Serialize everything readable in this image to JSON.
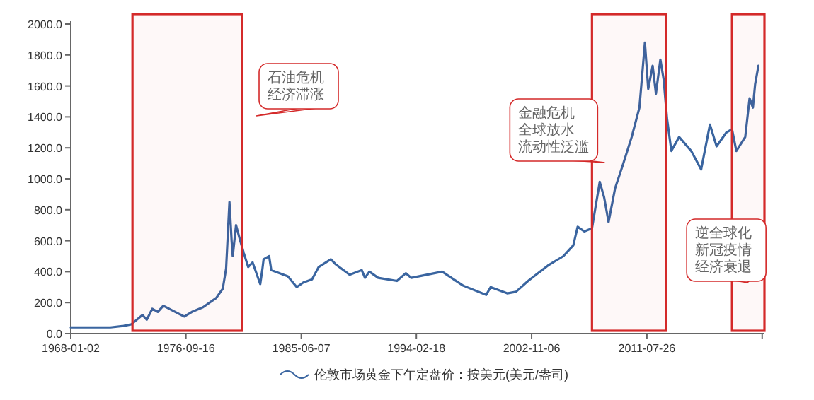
{
  "chart_data": {
    "type": "line",
    "xlim": [
      "1968-01-02",
      "2020-06-15"
    ],
    "xticks": [
      {
        "value": "1968-01-02",
        "label": "1968-01-02"
      },
      {
        "value": "1976-09-16",
        "label": "1976-09-16"
      },
      {
        "value": "1985-06-07",
        "label": "1985-06-07"
      },
      {
        "value": "1994-02-18",
        "label": "1994-02-18"
      },
      {
        "value": "2002-11-06",
        "label": "2002-11-06"
      },
      {
        "value": "2011-07-26",
        "label": "2011-07-26"
      },
      {
        "value": "2020-04-13",
        "label": null
      }
    ],
    "ylim": [
      0,
      2000
    ],
    "yticks": [
      {
        "value": 0,
        "label": "0.0"
      },
      {
        "value": 200,
        "label": "200.0"
      },
      {
        "value": 400,
        "label": "400.0"
      },
      {
        "value": 600,
        "label": "600.0"
      },
      {
        "value": 800,
        "label": "800.0"
      },
      {
        "value": 1000,
        "label": "1000.0"
      },
      {
        "value": 1200,
        "label": "1200.0"
      },
      {
        "value": 1400,
        "label": "1400.0"
      },
      {
        "value": 1600,
        "label": "1600.0"
      },
      {
        "value": 1800,
        "label": "1800.0"
      },
      {
        "value": 2000,
        "label": "2000.0"
      }
    ],
    "grid": false,
    "legend": "bottom",
    "marker": "none",
    "line_style": "solid",
    "series": [
      {
        "name": "伦敦市场黄金下午定盘价：按美元(美元/盎司)",
        "color": "#3a65a0",
        "x": [
          "1968-01-02",
          "1969-01",
          "1970-01",
          "1971-01",
          "1972-01",
          "1972-08",
          "1973-06",
          "1973-10",
          "1974-03",
          "1974-08",
          "1975-01",
          "1976-08",
          "1977-03",
          "1978-01",
          "1979-01",
          "1979-07",
          "1979-10",
          "1980-01",
          "1980-03",
          "1980-04",
          "1980-07",
          "1980-10",
          "1981-02",
          "1981-06",
          "1981-10",
          "1982-05",
          "1982-07",
          "1982-08",
          "1983-01",
          "1983-03",
          "1984-06",
          "1985-02",
          "1985-08",
          "1986-04",
          "1986-10",
          "1987-09",
          "1988-01",
          "1989-02",
          "1990-01",
          "1990-04",
          "1990-08",
          "1991-04",
          "1992-09",
          "1993-05",
          "1993-10",
          "1996-02",
          "1997-09",
          "1999-06",
          "1999-10",
          "2001-01",
          "2001-09",
          "2002-08",
          "2004-02",
          "2005-04",
          "2006-01",
          "2006-05",
          "2006-11",
          "2007-06",
          "2008-01",
          "2008-05",
          "2008-09",
          "2009-03",
          "2009-10",
          "2010-06",
          "2011-01",
          "2011-06",
          "2011-09",
          "2012-01",
          "2012-04",
          "2012-08",
          "2012-11",
          "2013-02",
          "2013-06",
          "2014-01",
          "2014-12",
          "2015-09",
          "2016-05",
          "2016-11",
          "2017-08",
          "2018-01",
          "2018-05",
          "2019-01",
          "2019-05",
          "2019-08",
          "2019-10",
          "2020-01"
        ],
        "values": [
          40,
          40,
          40,
          40,
          50,
          60,
          120,
          90,
          160,
          140,
          180,
          110,
          140,
          170,
          230,
          290,
          420,
          850,
          600,
          500,
          700,
          620,
          520,
          430,
          460,
          320,
          420,
          480,
          500,
          410,
          370,
          300,
          330,
          350,
          430,
          480,
          450,
          380,
          410,
          360,
          400,
          360,
          340,
          390,
          360,
          400,
          310,
          250,
          300,
          260,
          270,
          340,
          440,
          500,
          570,
          690,
          660,
          680,
          980,
          880,
          720,
          940,
          1090,
          1270,
          1460,
          1880,
          1580,
          1730,
          1550,
          1770,
          1640,
          1390,
          1180,
          1270,
          1180,
          1060,
          1350,
          1210,
          1300,
          1320,
          1180,
          1270,
          1520,
          1460,
          1610,
          1730
        ]
      }
    ],
    "bands": [
      {
        "axis": "x",
        "from": "1972-09-01",
        "to": "1980-12-15",
        "label": "石油危机经济滞涨",
        "color": "#d42a2a"
      },
      {
        "axis": "x",
        "from": "2007-06-01",
        "to": "2013-01-01",
        "label": "金融危机全球放水流动性泛滥",
        "color": "#d42a2a"
      },
      {
        "axis": "x",
        "from": "2018-01-01",
        "to": "2020-06-15",
        "label": "逆全球化新冠疫情经济衰退",
        "color": "#d42a2a"
      }
    ]
  }
}
